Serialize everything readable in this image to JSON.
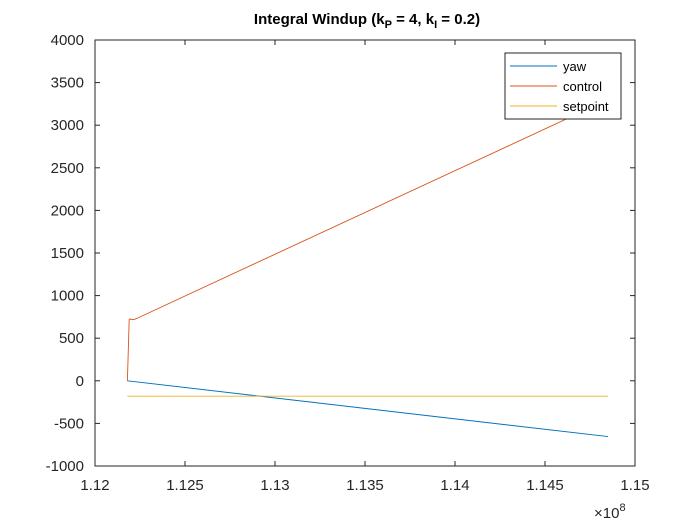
{
  "chart_data": {
    "type": "line",
    "title": {
      "main": "Integral Windup (k",
      "sub1": "P",
      "mid": " = 4, k",
      "sub2": "I",
      "end": " = 0.2)"
    },
    "xlabel": "",
    "ylabel": "",
    "x_exponent_label": "×10",
    "x_exponent_power": "8",
    "xlim": [
      1.12,
      1.15
    ],
    "ylim": [
      -1000,
      4000
    ],
    "xticks": [
      1.12,
      1.125,
      1.13,
      1.135,
      1.14,
      1.145,
      1.15
    ],
    "xtick_labels": [
      "1.12",
      "1.125",
      "1.13",
      "1.135",
      "1.14",
      "1.145",
      "1.15"
    ],
    "yticks": [
      -1000,
      -500,
      0,
      500,
      1000,
      1500,
      2000,
      2500,
      3000,
      3500,
      4000
    ],
    "ytick_labels": [
      "-1000",
      "-500",
      "0",
      "500",
      "1000",
      "1500",
      "2000",
      "2500",
      "3000",
      "3500",
      "4000"
    ],
    "grid": false,
    "legend_position": "top-right",
    "series": [
      {
        "name": "yaw",
        "color": "#0072BD",
        "x": [
          1.1218,
          1.1485
        ],
        "y": [
          0,
          -655
        ]
      },
      {
        "name": "control",
        "color": "#D95319",
        "x": [
          1.1218,
          1.1219,
          1.12195,
          1.1221,
          1.1222,
          1.1223,
          1.1485
        ],
        "y": [
          0,
          720,
          725,
          718,
          722,
          730,
          3300
        ]
      },
      {
        "name": "setpoint",
        "color": "#EDB120",
        "x": [
          1.1218,
          1.1485
        ],
        "y": [
          -180,
          -180
        ]
      }
    ]
  }
}
